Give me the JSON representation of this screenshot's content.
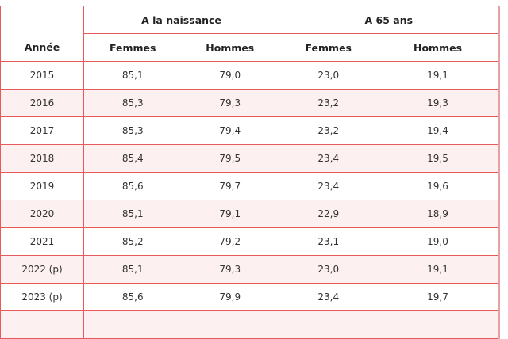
{
  "table": {
    "year_header": "Année",
    "groups": [
      "A la naissance",
      "A 65 ans"
    ],
    "subheaders": [
      "Femmes",
      "Hommes",
      "Femmes",
      "Hommes"
    ],
    "rows": [
      [
        "2015",
        "85,1",
        "79,0",
        "23,0",
        "19,1"
      ],
      [
        "2016",
        "85,3",
        "79,3",
        "23,2",
        "19,3"
      ],
      [
        "2017",
        "85,3",
        "79,4",
        "23,2",
        "19,4"
      ],
      [
        "2018",
        "85,4",
        "79,5",
        "23,4",
        "19,5"
      ],
      [
        "2019",
        "85,6",
        "79,7",
        "23,4",
        "19,6"
      ],
      [
        "2020",
        "85,1",
        "79,1",
        "22,9",
        "18,9"
      ],
      [
        "2021",
        "85,2",
        "79,2",
        "23,1",
        "19,0"
      ],
      [
        "2022 (p)",
        "85,1",
        "79,3",
        "23,0",
        "19,1"
      ],
      [
        "2023 (p)",
        "85,6",
        "79,9",
        "23,4",
        "19,7"
      ],
      [
        "",
        "",
        "",
        "",
        ""
      ]
    ]
  }
}
